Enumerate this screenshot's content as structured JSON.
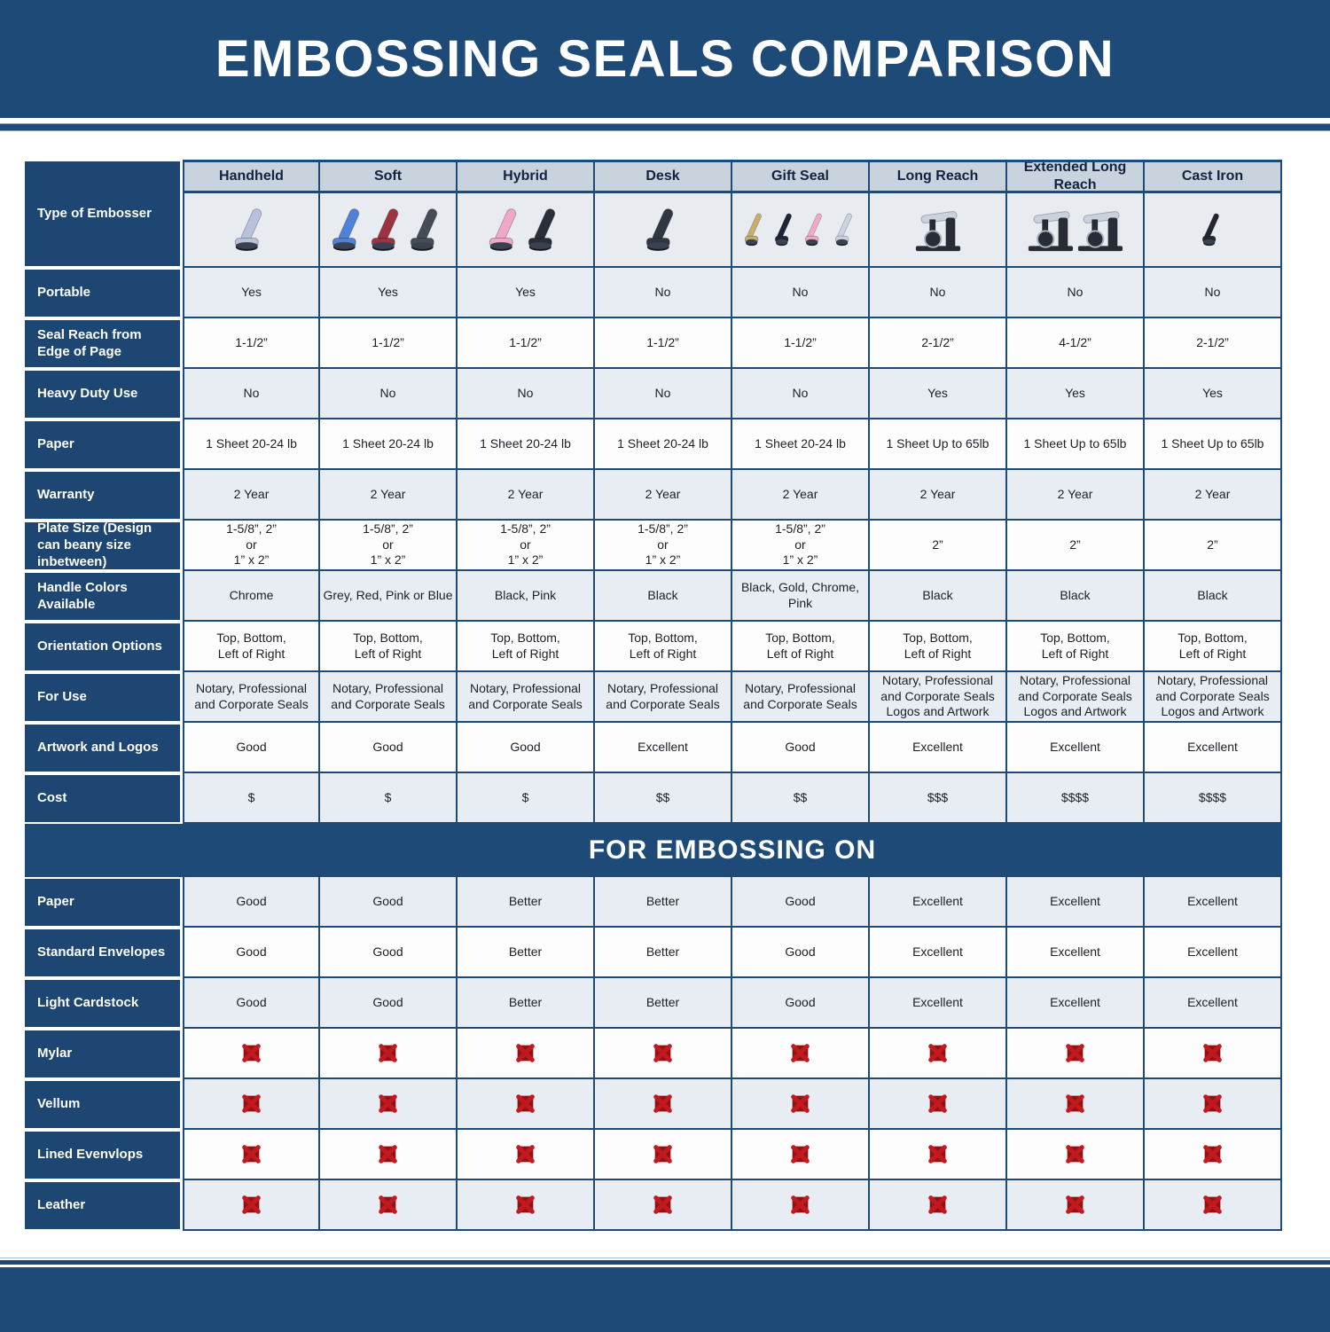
{
  "page": {
    "title": "EMBOSSING SEALS COMPARISON",
    "section_banner": "FOR EMBOSSING ON"
  },
  "table": {
    "corner_label": "Type of Embosser",
    "columns": [
      "Handheld",
      "Soft",
      "Hybrid",
      "Desk",
      "Gift Seal",
      "Long Reach",
      "Extended Long Reach",
      "Cast Iron"
    ],
    "embossers": [
      {
        "icon": "handheld-embosser-image",
        "style": "plier",
        "colors": [
          "#b9c2dd"
        ]
      },
      {
        "icon": "soft-embosser-image",
        "style": "plier",
        "colors": [
          "#4f82d6",
          "#9c3340",
          "#454b57"
        ]
      },
      {
        "icon": "hybrid-embosser-image",
        "style": "plier",
        "colors": [
          "#f0a8c8",
          "#2a2e39"
        ]
      },
      {
        "icon": "desk-embosser-image",
        "style": "plier",
        "colors": [
          "#303743"
        ]
      },
      {
        "icon": "gift-seal-embosser-image",
        "style": "plier-slim",
        "colors": [
          "#c8ae6d",
          "#202534",
          "#f2a9c9",
          "#ccd3e0"
        ]
      },
      {
        "icon": "long-reach-embosser-image",
        "style": "desk",
        "colors": [
          "#272c37"
        ]
      },
      {
        "icon": "extended-long-reach-embosser-image",
        "style": "desk",
        "colors": [
          "#272c37",
          "#272c37"
        ]
      },
      {
        "icon": "cast-iron-embosser-image",
        "style": "plier-slim",
        "colors": [
          "#22262f"
        ]
      }
    ],
    "spec_rows": [
      {
        "label": "Portable",
        "values": [
          "Yes",
          "Yes",
          "Yes",
          "No",
          "No",
          "No",
          "No",
          "No"
        ]
      },
      {
        "label": "Seal Reach from Edge of Page",
        "values": [
          "1-1/2”",
          "1-1/2”",
          "1-1/2”",
          "1-1/2”",
          "1-1/2”",
          "2-1/2”",
          "4-1/2”",
          "2-1/2”"
        ]
      },
      {
        "label": "Heavy Duty Use",
        "values": [
          "No",
          "No",
          "No",
          "No",
          "No",
          "Yes",
          "Yes",
          "Yes"
        ]
      },
      {
        "label": "Paper",
        "values": [
          "1 Sheet 20-24 lb",
          "1 Sheet 20-24 lb",
          "1 Sheet 20-24 lb",
          "1 Sheet 20-24 lb",
          "1 Sheet 20-24 lb",
          "1 Sheet Up to 65lb",
          "1 Sheet Up to 65lb",
          "1 Sheet Up to 65lb"
        ]
      },
      {
        "label": "Warranty",
        "values": [
          "2 Year",
          "2 Year",
          "2 Year",
          "2 Year",
          "2 Year",
          "2 Year",
          "2 Year",
          "2 Year"
        ]
      },
      {
        "label": "Plate Size (Design can beany size inbetween)",
        "values": [
          "1-5/8”, 2”\nor\n1” x 2”",
          "1-5/8”, 2”\nor\n1” x 2”",
          "1-5/8”, 2”\nor\n1” x 2”",
          "1-5/8”, 2”\nor\n1” x 2”",
          "1-5/8”, 2”\nor\n1” x 2”",
          "2”",
          "2”",
          "2”"
        ]
      },
      {
        "label": "Handle Colors Available",
        "values": [
          "Chrome",
          "Grey, Red, Pink or Blue",
          "Black, Pink",
          "Black",
          "Black, Gold, Chrome, Pink",
          "Black",
          "Black",
          "Black"
        ]
      },
      {
        "label": "Orientation Options",
        "values": [
          "Top, Bottom,\nLeft of Right",
          "Top, Bottom,\nLeft of Right",
          "Top, Bottom,\nLeft of Right",
          "Top, Bottom,\nLeft of Right",
          "Top, Bottom,\nLeft of Right",
          "Top, Bottom,\nLeft of Right",
          "Top, Bottom,\nLeft of Right",
          "Top, Bottom,\nLeft of Right"
        ]
      },
      {
        "label": "For Use",
        "values": [
          "Notary, Professional\nand Corporate Seals",
          "Notary, Professional\nand Corporate Seals",
          "Notary, Professional\nand Corporate Seals",
          "Notary, Professional\nand Corporate Seals",
          "Notary, Professional\nand Corporate Seals",
          "Notary, Professional\nand Corporate Seals\nLogos and Artwork",
          "Notary, Professional\nand Corporate Seals\nLogos and Artwork",
          "Notary, Professional\nand Corporate Seals\nLogos and Artwork"
        ]
      },
      {
        "label": "Artwork and Logos",
        "values": [
          "Good",
          "Good",
          "Good",
          "Excellent",
          "Good",
          "Excellent",
          "Excellent",
          "Excellent"
        ]
      },
      {
        "label": "Cost",
        "values": [
          "$",
          "$",
          "$",
          "$$",
          "$$",
          "$$$",
          "$$$$",
          "$$$$"
        ]
      }
    ],
    "embossing_rows": [
      {
        "label": "Paper",
        "values": [
          "Good",
          "Good",
          "Better",
          "Better",
          "Good",
          "Excellent",
          "Excellent",
          "Excellent"
        ]
      },
      {
        "label": "Standard Envelopes",
        "values": [
          "Good",
          "Good",
          "Better",
          "Better",
          "Good",
          "Excellent",
          "Excellent",
          "Excellent"
        ]
      },
      {
        "label": "Light Cardstock",
        "values": [
          "Good",
          "Good",
          "Better",
          "Better",
          "Good",
          "Excellent",
          "Excellent",
          "Excellent"
        ]
      },
      {
        "label": "Mylar",
        "icon": "x"
      },
      {
        "label": "Vellum",
        "icon": "x"
      },
      {
        "label": "Lined Evenvlops",
        "icon": "x"
      },
      {
        "label": "Leather",
        "icon": "x"
      }
    ],
    "x_icon": "not-suitable-x-icon"
  },
  "colors": {
    "dark_blue": "#1e4a78",
    "left_cell_blue": "#1d4672",
    "header_cell_bg": "#c9d3de",
    "row_gray": "#e8edf3",
    "row_white": "#fdfdfe",
    "x_red": "#c2191f",
    "x_dark_red": "#8e1216"
  }
}
